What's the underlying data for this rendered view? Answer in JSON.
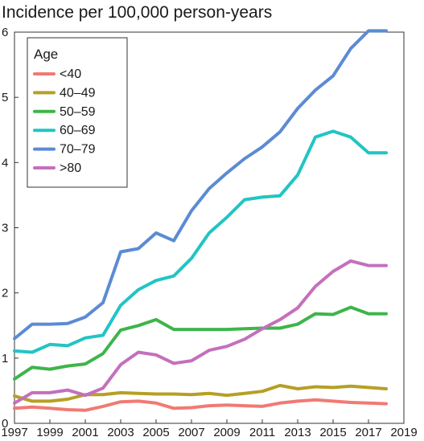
{
  "chart_data": {
    "type": "line",
    "title": "Incidence per 100,000 person-years",
    "xlabel": "",
    "ylabel": "",
    "xlim": [
      1997,
      2019
    ],
    "ylim": [
      0,
      6
    ],
    "x_ticks": [
      1997,
      1999,
      2001,
      2003,
      2005,
      2007,
      2009,
      2011,
      2013,
      2015,
      2017,
      2019
    ],
    "x_tick_labels": [
      "1997",
      "1999",
      "2001",
      "2003",
      "2005",
      "2007",
      "2009",
      "2011",
      "2013",
      "2015",
      "2017",
      "2019"
    ],
    "y_ticks": [
      0,
      1,
      2,
      3,
      4,
      5,
      6
    ],
    "y_tick_labels": [
      "0",
      "1",
      "2",
      "3",
      "4",
      "5",
      "6"
    ],
    "grid": false,
    "legend": {
      "title": "Age",
      "placement": "top-left"
    },
    "x": [
      1997,
      1998,
      1999,
      2000,
      2001,
      2002,
      2003,
      2004,
      2005,
      2006,
      2007,
      2008,
      2009,
      2010,
      2011,
      2012,
      2013,
      2014,
      2015,
      2016,
      2017,
      2018
    ],
    "series": [
      {
        "name": "<40",
        "color": "#f07a73",
        "values": [
          0.23,
          0.25,
          0.23,
          0.21,
          0.2,
          0.26,
          0.33,
          0.34,
          0.31,
          0.23,
          0.24,
          0.27,
          0.28,
          0.27,
          0.26,
          0.31,
          0.34,
          0.36,
          0.34,
          0.32,
          0.31,
          0.3
        ]
      },
      {
        "name": "40–49",
        "color": "#b5a024",
        "values": [
          0.42,
          0.34,
          0.34,
          0.37,
          0.44,
          0.44,
          0.47,
          0.46,
          0.45,
          0.45,
          0.44,
          0.46,
          0.43,
          0.46,
          0.49,
          0.58,
          0.53,
          0.56,
          0.55,
          0.57,
          0.55,
          0.53
        ]
      },
      {
        "name": "50–59",
        "color": "#3db54a",
        "values": [
          0.68,
          0.86,
          0.83,
          0.88,
          0.91,
          1.07,
          1.43,
          1.5,
          1.59,
          1.44,
          1.44,
          1.44,
          1.44,
          1.45,
          1.46,
          1.46,
          1.52,
          1.68,
          1.67,
          1.78,
          1.68,
          1.68
        ]
      },
      {
        "name": "60–69",
        "color": "#22c4c4",
        "values": [
          1.11,
          1.09,
          1.21,
          1.19,
          1.31,
          1.35,
          1.81,
          2.05,
          2.19,
          2.26,
          2.53,
          2.92,
          3.16,
          3.43,
          3.47,
          3.49,
          3.81,
          4.39,
          4.48,
          4.39,
          4.15,
          4.15
        ]
      },
      {
        "name": "70–79",
        "color": "#5b8bd4",
        "values": [
          1.3,
          1.52,
          1.52,
          1.53,
          1.63,
          1.85,
          2.63,
          2.68,
          2.92,
          2.8,
          3.26,
          3.6,
          3.84,
          4.06,
          4.24,
          4.47,
          4.83,
          5.11,
          5.33,
          5.75,
          6.02,
          6.02
        ]
      },
      {
        "name": ">80",
        "color": "#c46fbd",
        "values": [
          0.31,
          0.47,
          0.47,
          0.51,
          0.43,
          0.54,
          0.9,
          1.09,
          1.05,
          0.92,
          0.96,
          1.12,
          1.18,
          1.29,
          1.45,
          1.59,
          1.77,
          2.1,
          2.33,
          2.49,
          2.42,
          2.42
        ]
      }
    ]
  }
}
